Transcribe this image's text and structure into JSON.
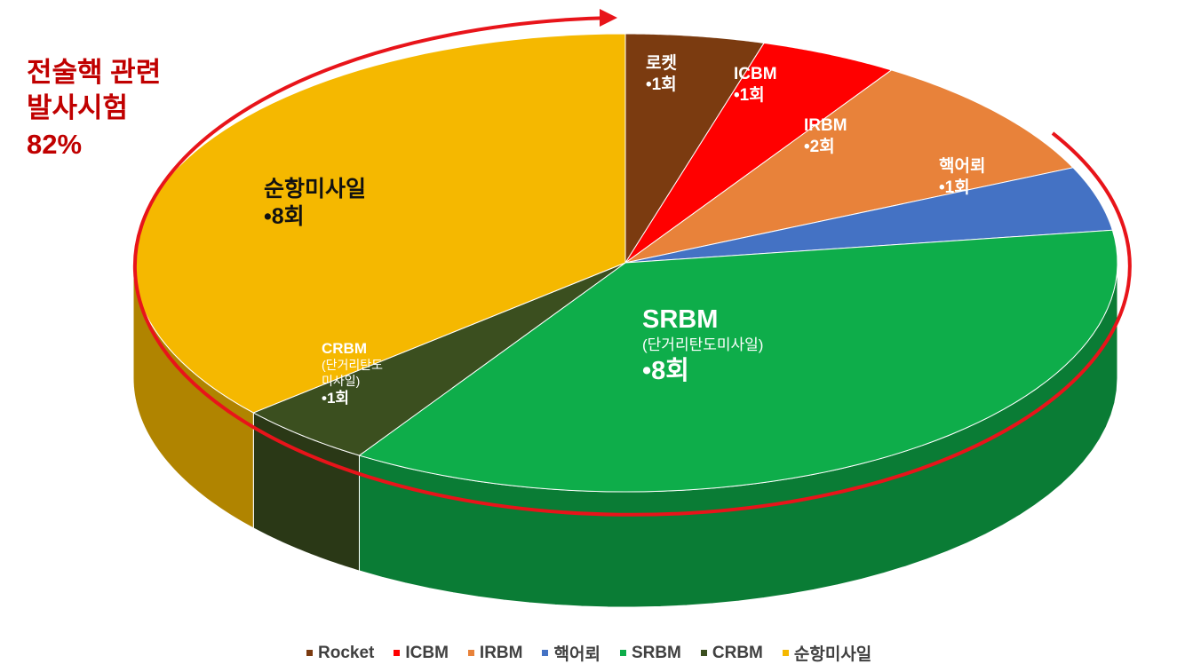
{
  "annotation": {
    "line1": "전술핵 관련",
    "line2": "발사시험",
    "line3": "82%"
  },
  "chart_data": {
    "type": "pie",
    "style": "3d",
    "unit": "회",
    "slices": [
      {
        "name": "Rocket",
        "label": "로켓",
        "value": 1,
        "value_text": "•1회",
        "color": "#7b3b10"
      },
      {
        "name": "ICBM",
        "label": "ICBM",
        "value": 1,
        "value_text": "•1회",
        "color": "#ff0000"
      },
      {
        "name": "IRBM",
        "label": "IRBM",
        "value": 2,
        "value_text": "•2회",
        "color": "#e8823a"
      },
      {
        "name": "핵어뢰",
        "label": "핵어뢰",
        "value": 1,
        "value_text": "•1회",
        "color": "#4472c4"
      },
      {
        "name": "SRBM",
        "label": "SRBM",
        "sublabel": "(단거리탄도미사일)",
        "value": 8,
        "value_text": "•8회",
        "color": "#0ead4a"
      },
      {
        "name": "CRBM",
        "label": "CRBM",
        "sublabel": "(단거리탄도미사일)",
        "value": 1,
        "value_text": "•1회",
        "color": "#3b4f1f"
      },
      {
        "name": "순항미사일",
        "label": "순항미사일",
        "value": 8,
        "value_text": "•8회",
        "color": "#f5b800"
      }
    ],
    "legend_position": "bottom"
  },
  "crbm_sub": {
    "a": "(단거리탄도",
    "b": "미사일)"
  }
}
